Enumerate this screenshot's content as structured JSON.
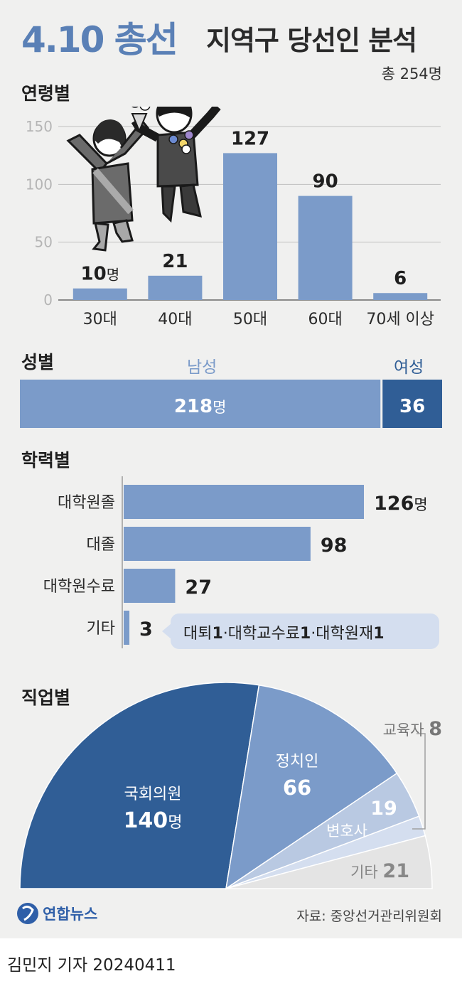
{
  "header": {
    "title_main": "4.10 총선",
    "title_sub": "지역구 당선인 분석",
    "total": "총 254명"
  },
  "colors": {
    "primary": "#7b9bc9",
    "dark": "#305e96",
    "light": "#b9c9e2",
    "lighter": "#d4deef",
    "gray": "#e4e4e4",
    "title": "#5a80b6"
  },
  "age": {
    "section_title": "연령별",
    "chart_data": {
      "type": "bar",
      "categories": [
        "30대",
        "40대",
        "50대",
        "60대",
        "70세 이상"
      ],
      "values": [
        10,
        21,
        127,
        90,
        6
      ],
      "value_labels": [
        "10",
        "21",
        "127",
        "90",
        "6"
      ],
      "first_unit": "명",
      "ylim": [
        0,
        150
      ],
      "yticks": [
        "0",
        "50",
        "100",
        "150"
      ],
      "grid": true
    }
  },
  "gender": {
    "section_title": "성별",
    "chart_data": {
      "type": "bar",
      "categories": [
        "남성",
        "여성"
      ],
      "values": [
        218,
        36
      ],
      "value_labels": [
        "218",
        "36"
      ],
      "unit": "명"
    }
  },
  "education": {
    "section_title": "학력별",
    "chart_data": {
      "type": "bar",
      "categories": [
        "대학원졸",
        "대졸",
        "대학원수료",
        "기타"
      ],
      "values": [
        126,
        98,
        27,
        3
      ],
      "value_labels": [
        "126",
        "98",
        "27",
        "3"
      ],
      "unit": "명"
    },
    "note": {
      "parts": [
        {
          "text": "대퇴",
          "num": "1"
        },
        {
          "text": "·대학교수료",
          "num": "1"
        },
        {
          "text": "·대학원재",
          "num": "1"
        }
      ]
    }
  },
  "job": {
    "section_title": "직업별",
    "chart_data": {
      "type": "pie",
      "categories": [
        "국회의원",
        "정치인",
        "변호사",
        "교육자",
        "기타"
      ],
      "values": [
        140,
        66,
        19,
        8,
        21
      ],
      "value_labels": [
        "140",
        "66",
        "19",
        "8",
        "21"
      ],
      "first_unit": "명"
    }
  },
  "source": "자료: 중앙선거관리위원회",
  "logo_text": "연합뉴스",
  "byline": "김민지 기자  20240411"
}
